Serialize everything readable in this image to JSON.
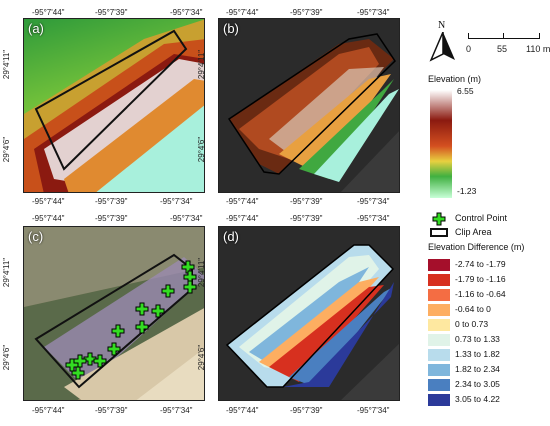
{
  "panels": {
    "a": "(a)",
    "b": "(b)",
    "c": "(c)",
    "d": "(d)"
  },
  "ticks": {
    "x": [
      "-95°7'44\"",
      "-95°7'39\"",
      "-95°7'34\""
    ],
    "y": [
      "29°4'11\"",
      "29°4'6\""
    ]
  },
  "north_label": "N",
  "scale": {
    "labels": [
      "0",
      "55",
      "110 m"
    ]
  },
  "elevation_legend": {
    "title": "Elevation (m)",
    "max": "6.55",
    "min": "-1.23",
    "colors": [
      "#ffffff",
      "#8b1a10",
      "#d45020",
      "#e8d040",
      "#40b040",
      "#c8ffd8"
    ]
  },
  "point_legend": {
    "control_point": "Control Point",
    "clip_area": "Clip Area",
    "marker_color": "#33dd22"
  },
  "difference_legend": {
    "title": "Elevation Difference (m)",
    "classes": [
      {
        "label": "-2.74 to -1.79",
        "color": "#a50f2b"
      },
      {
        "label": "-1.79 to -1.16",
        "color": "#d7301f"
      },
      {
        "label": "-1.16 to -0.64",
        "color": "#f46d43"
      },
      {
        "label": "-0.64 to 0",
        "color": "#fdae61"
      },
      {
        "label": "0 to 0.73",
        "color": "#fee8a0"
      },
      {
        "label": "0.73 to 1.33",
        "color": "#e0f3e8"
      },
      {
        "label": "1.33 to 1.82",
        "color": "#b8dcec"
      },
      {
        "label": "1.82 to 2.34",
        "color": "#7fb6dc"
      },
      {
        "label": "2.34 to 3.05",
        "color": "#4a7fc0"
      },
      {
        "label": "3.05 to 4.22",
        "color": "#2b3a9a"
      }
    ]
  }
}
